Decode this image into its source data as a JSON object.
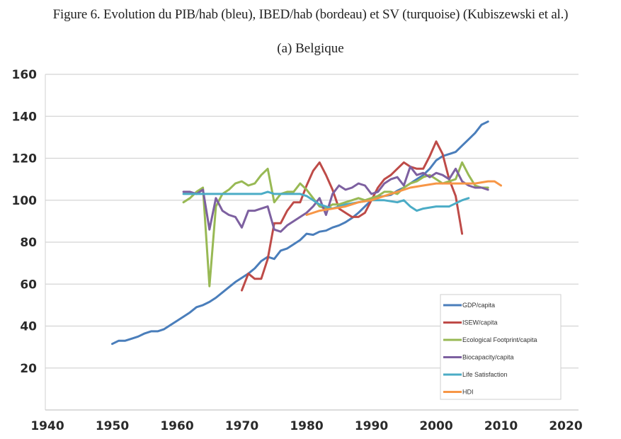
{
  "figure_title": "Figure 6. Evolution du PIB/hab (bleu), IBED/hab (bordeau) et SV (turquoise) (Kubiszewski et al.)",
  "chart_data": {
    "type": "line",
    "title": "(a) Belgique",
    "xlabel": "",
    "ylabel": "",
    "xlim": [
      1940,
      2020
    ],
    "ylim": [
      0,
      160
    ],
    "x_ticks": [
      "1940",
      "1950",
      "1960",
      "1970",
      "1980",
      "1990",
      "2000",
      "2010",
      "2020"
    ],
    "y_ticks": [
      "20",
      "40",
      "60",
      "80",
      "100",
      "120",
      "140",
      "160"
    ],
    "grid": true,
    "legend_position": "bottom-right",
    "series": [
      {
        "name": "GDP/capita",
        "color": "#4a7ebb",
        "x": [
          1950,
          1951,
          1952,
          1953,
          1954,
          1955,
          1956,
          1957,
          1958,
          1959,
          1960,
          1961,
          1962,
          1963,
          1964,
          1965,
          1966,
          1967,
          1968,
          1969,
          1970,
          1971,
          1972,
          1973,
          1974,
          1975,
          1976,
          1977,
          1978,
          1979,
          1980,
          1981,
          1982,
          1983,
          1984,
          1985,
          1986,
          1987,
          1988,
          1989,
          1990,
          1991,
          1992,
          1993,
          1994,
          1995,
          1996,
          1997,
          1998,
          1999,
          2000,
          2001,
          2002,
          2003,
          2004,
          2005,
          2006,
          2007,
          2008
        ],
        "y": [
          31.5,
          33,
          33,
          34,
          35,
          36.5,
          37.5,
          37.5,
          38.5,
          40.5,
          42.5,
          44.5,
          46.5,
          49,
          50,
          51.5,
          53.5,
          56,
          58.5,
          61,
          63,
          65,
          67.5,
          71,
          73,
          72,
          76,
          77,
          79,
          81,
          84,
          83.5,
          85,
          85.5,
          87,
          88,
          89.5,
          91.5,
          94,
          97,
          100,
          101.5,
          102,
          102.5,
          104.5,
          106,
          108,
          110,
          112,
          115,
          119,
          121,
          122,
          123,
          126,
          129,
          132,
          136,
          137.5
        ]
      },
      {
        "name": "ISEW/capita",
        "color": "#be4b48",
        "x": [
          1970,
          1971,
          1972,
          1973,
          1974,
          1975,
          1976,
          1977,
          1978,
          1979,
          1980,
          1981,
          1982,
          1983,
          1984,
          1985,
          1986,
          1987,
          1988,
          1989,
          1990,
          1991,
          1992,
          1993,
          1994,
          1995,
          1996,
          1997,
          1998,
          1999,
          2000,
          2001,
          2002,
          2003,
          2004
        ],
        "y": [
          57,
          65,
          62.5,
          62.5,
          72,
          89,
          89,
          95,
          99,
          99,
          107,
          114,
          118,
          112,
          105,
          96,
          94,
          92,
          92,
          94,
          100,
          106,
          110,
          112,
          115,
          118,
          116,
          115,
          115,
          121,
          128,
          122,
          110,
          102,
          84
        ]
      },
      {
        "name": "Ecological Footprint/capita",
        "color": "#98b954",
        "x": [
          1961,
          1962,
          1963,
          1964,
          1965,
          1966,
          1967,
          1968,
          1969,
          1970,
          1971,
          1972,
          1973,
          1974,
          1975,
          1976,
          1977,
          1978,
          1979,
          1980,
          1981,
          1982,
          1983,
          1984,
          1985,
          1986,
          1987,
          1988,
          1989,
          1990,
          1991,
          1992,
          1993,
          1994,
          1995,
          1996,
          1997,
          1998,
          1999,
          2000,
          2001,
          2002,
          2003,
          2004,
          2005,
          2006,
          2007,
          2008
        ],
        "y": [
          99,
          101,
          104,
          106,
          59,
          97,
          103,
          105,
          108,
          109,
          107,
          108,
          112,
          115,
          99,
          103,
          104,
          104,
          108,
          105,
          101,
          97,
          96,
          98,
          98,
          99,
          100,
          101,
          100,
          101,
          102,
          104,
          104,
          103,
          106,
          108,
          109,
          111,
          112,
          110,
          108,
          109,
          110,
          118,
          112,
          107,
          106,
          106
        ]
      },
      {
        "name": "Biocapacity/capita",
        "color": "#7d60a0",
        "x": [
          1961,
          1962,
          1963,
          1964,
          1965,
          1966,
          1967,
          1968,
          1969,
          1970,
          1971,
          1972,
          1973,
          1974,
          1975,
          1976,
          1977,
          1978,
          1979,
          1980,
          1981,
          1982,
          1983,
          1984,
          1985,
          1986,
          1987,
          1988,
          1989,
          1990,
          1991,
          1992,
          1993,
          1994,
          1995,
          1996,
          1997,
          1998,
          1999,
          2000,
          2001,
          2002,
          2003,
          2004,
          2005,
          2006,
          2007,
          2008
        ],
        "y": [
          104,
          104,
          103,
          105,
          86,
          101,
          95,
          93,
          92,
          87,
          95,
          95,
          96,
          97,
          86,
          85,
          88,
          90,
          92,
          94,
          97,
          101,
          93,
          103,
          107,
          105,
          106,
          108,
          107,
          103,
          104,
          108,
          110,
          111,
          107,
          116,
          112,
          113,
          111,
          113,
          112,
          110,
          115,
          109,
          107,
          106,
          106,
          105
        ]
      },
      {
        "name": "Life Satisfaction",
        "color": "#4bacc6",
        "x": [
          1961,
          1963,
          1965,
          1967,
          1969,
          1971,
          1973,
          1974,
          1975,
          1977,
          1979,
          1980,
          1982,
          1984,
          1986,
          1988,
          1990,
          1992,
          1994,
          1995,
          1996,
          1997,
          1998,
          2000,
          2002,
          2004,
          2005
        ],
        "y": [
          103,
          103,
          103,
          103,
          103,
          103,
          103,
          104,
          103,
          103,
          103,
          102,
          98,
          96,
          98,
          99,
          100,
          100,
          99,
          100,
          97,
          95,
          96,
          97,
          97,
          100,
          101
        ]
      },
      {
        "name": "HDI",
        "color": "#f79646",
        "x": [
          1980,
          1982,
          1984,
          1986,
          1988,
          1990,
          1992,
          1994,
          1996,
          1998,
          2000,
          2002,
          2004,
          2006,
          2008,
          2009,
          2010
        ],
        "y": [
          93,
          95,
          96,
          97,
          99,
          100,
          102,
          104,
          106,
          107,
          108,
          108,
          108,
          108,
          109,
          109,
          107
        ]
      }
    ]
  }
}
